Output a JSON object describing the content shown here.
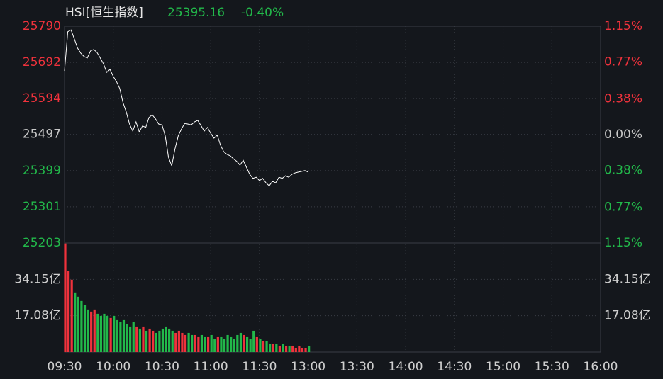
{
  "chart_data": [
    {
      "type": "line",
      "title": "HSI[恒生指数]",
      "last_price": "25395.16",
      "change": "-0.40%",
      "color": "#ffffff",
      "up_color": "#f0323c",
      "down_color": "#22b84a",
      "flat_color": "#c8c8c8",
      "x": [
        0,
        2,
        4,
        6,
        8,
        10,
        12,
        14,
        16,
        18,
        20,
        22,
        24,
        26,
        28,
        30,
        32,
        34,
        36,
        38,
        40,
        42,
        44,
        46,
        48,
        50,
        52,
        54,
        56,
        58,
        60,
        62,
        64,
        66,
        68,
        70,
        72,
        74,
        76,
        78,
        80,
        82,
        84,
        86,
        88,
        90,
        92,
        94,
        96,
        98,
        100,
        102,
        104,
        106,
        108,
        110,
        112,
        114,
        116,
        118,
        120,
        122,
        124,
        126,
        128,
        130,
        132,
        134,
        136,
        138,
        140,
        142,
        144,
        146,
        148,
        150
      ],
      "values": [
        25669,
        25775,
        25780,
        25756,
        25731,
        25717,
        25708,
        25704,
        25723,
        25727,
        25719,
        25704,
        25688,
        25665,
        25673,
        25654,
        25640,
        25621,
        25583,
        25558,
        25525,
        25506,
        25531,
        25504,
        25520,
        25516,
        25543,
        25550,
        25539,
        25525,
        25523,
        25493,
        25435,
        25412,
        25458,
        25493,
        25512,
        25527,
        25525,
        25523,
        25531,
        25535,
        25521,
        25506,
        25516,
        25500,
        25487,
        25495,
        25468,
        25450,
        25443,
        25439,
        25431,
        25424,
        25414,
        25427,
        25408,
        25389,
        25378,
        25381,
        25372,
        25378,
        25366,
        25358,
        25370,
        25366,
        25381,
        25378,
        25385,
        25381,
        25389,
        25393,
        25395,
        25397,
        25399,
        25395
      ],
      "xlim": [
        0,
        330
      ],
      "xticks": [
        {
          "value": 0,
          "label": "09:30"
        },
        {
          "value": 30,
          "label": "10:00"
        },
        {
          "value": 60,
          "label": "10:30"
        },
        {
          "value": 90,
          "label": "11:00"
        },
        {
          "value": 120,
          "label": "11:30"
        },
        {
          "value": 150,
          "label": "13:00"
        },
        {
          "value": 180,
          "label": "13:30"
        },
        {
          "value": 210,
          "label": "14:00"
        },
        {
          "value": 240,
          "label": "14:30"
        },
        {
          "value": 270,
          "label": "15:00"
        },
        {
          "value": 300,
          "label": "15:30"
        },
        {
          "value": 330,
          "label": "16:00"
        }
      ],
      "ylim": [
        25203,
        25790
      ],
      "yticks": [
        25790,
        25692,
        25594,
        25497,
        25399,
        25301,
        25203
      ],
      "y2lim": [
        -1.15,
        1.15
      ],
      "y2ticks": [
        {
          "value": 1.15,
          "label": "1.15%"
        },
        {
          "value": 0.77,
          "label": "0.77%"
        },
        {
          "value": 0.38,
          "label": "0.38%"
        },
        {
          "value": 0,
          "label": "0.00%"
        },
        {
          "value": -0.38,
          "label": "0.38%"
        },
        {
          "value": -0.77,
          "label": "0.77%"
        },
        {
          "value": -1.15,
          "label": "1.15%"
        }
      ],
      "grid": true
    },
    {
      "type": "bar",
      "values": [
        51,
        38,
        34,
        28,
        26,
        24,
        22,
        20,
        19,
        20,
        18,
        17,
        18,
        17,
        16,
        17,
        15,
        14,
        15,
        13,
        12,
        14,
        12,
        11,
        12,
        10,
        11,
        10,
        9,
        10,
        11,
        12,
        11,
        10,
        9,
        10,
        9,
        8,
        9,
        8,
        8,
        7,
        8,
        7,
        7,
        8,
        6,
        7,
        7,
        6,
        8,
        7,
        6,
        8,
        9,
        8,
        7,
        6,
        10,
        7,
        6,
        5,
        5,
        4,
        4,
        4,
        3,
        4,
        3,
        3,
        3,
        2,
        3,
        2,
        2,
        3
      ],
      "ylim": [
        0,
        51.23
      ],
      "yticks": [
        {
          "value": 34.15,
          "label": "34.15亿"
        },
        {
          "value": 17.08,
          "label": "17.08亿"
        }
      ],
      "grid": true
    }
  ]
}
